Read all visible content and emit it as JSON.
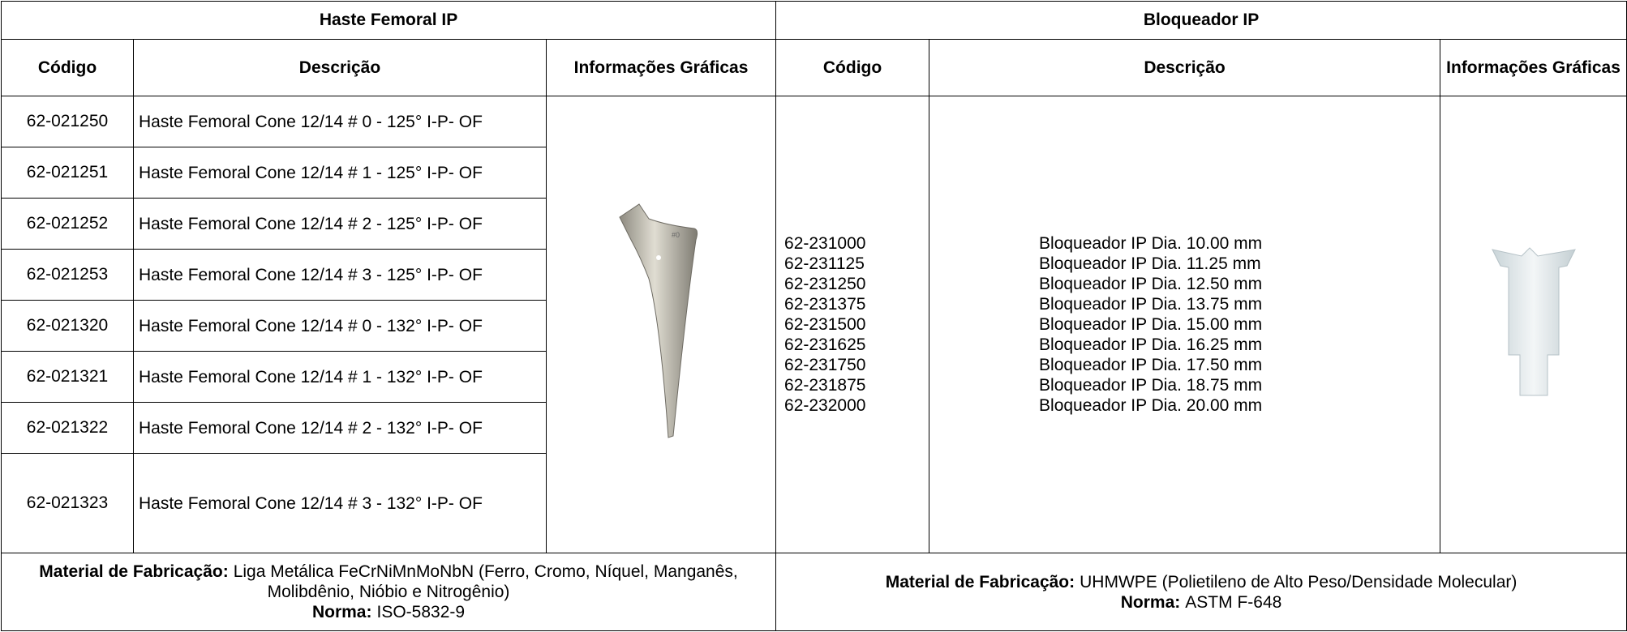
{
  "left": {
    "title": "Haste Femoral IP",
    "headers": [
      "Código",
      "Descrição",
      "Informações Gráficas"
    ],
    "rows": [
      {
        "code": "62-021250",
        "description": "Haste Femoral Cone 12/14 # 0 - 125° I-P- OF"
      },
      {
        "code": "62-021251",
        "description": "Haste Femoral Cone 12/14 # 1 - 125° I-P- OF"
      },
      {
        "code": "62-021252",
        "description": "Haste Femoral Cone 12/14 # 2 - 125° I-P- OF"
      },
      {
        "code": "62-021253",
        "description": "Haste Femoral Cone 12/14 # 3 - 125° I-P- OF"
      },
      {
        "code": "62-021320",
        "description": "Haste Femoral Cone 12/14 # 0 - 132° I-P- OF"
      },
      {
        "code": "62-021321",
        "description": "Haste Femoral Cone 12/14 # 1 - 132° I-P- OF"
      },
      {
        "code": "62-021322",
        "description": "Haste Femoral Cone 12/14 # 2 - 132° I-P- OF"
      },
      {
        "code": "62-021323",
        "description": "Haste Femoral Cone 12/14 # 3 - 132° I-P- OF"
      }
    ],
    "material": {
      "label": "Material de Fabricação:",
      "text": "Liga Metálica FeCrNiMnMoNbN (Ferro, Cromo, Níquel, Manganês, Molibdênio, Nióbio e Nitrogênio)"
    },
    "norma": {
      "label": "Norma:",
      "text": "ISO-5832-9"
    }
  },
  "right": {
    "title": "Bloqueador IP",
    "headers": [
      "Código",
      "Descrição",
      "Informações Gráficas"
    ],
    "codes": [
      "62-231000",
      "62-231125",
      "62-231250",
      "62-231375",
      "62-231500",
      "62-231625",
      "62-231750",
      "62-231875",
      "62-232000"
    ],
    "descriptions": [
      "Bloqueador IP Dia. 10.00 mm",
      "Bloqueador IP Dia. 11.25 mm",
      "Bloqueador IP Dia. 12.50 mm",
      "Bloqueador IP Dia. 13.75 mm",
      "Bloqueador IP Dia. 15.00 mm",
      "Bloqueador IP Dia. 16.25 mm",
      "Bloqueador IP Dia. 17.50 mm",
      "Bloqueador IP Dia. 18.75 mm",
      "Bloqueador IP Dia. 20.00 mm"
    ],
    "material": {
      "label": "Material de Fabricação:",
      "text": "UHMWPE (Polietileno de Alto Peso/Densidade Molecular)"
    },
    "norma": {
      "label": "Norma:",
      "text": "ASTM F-648"
    }
  }
}
